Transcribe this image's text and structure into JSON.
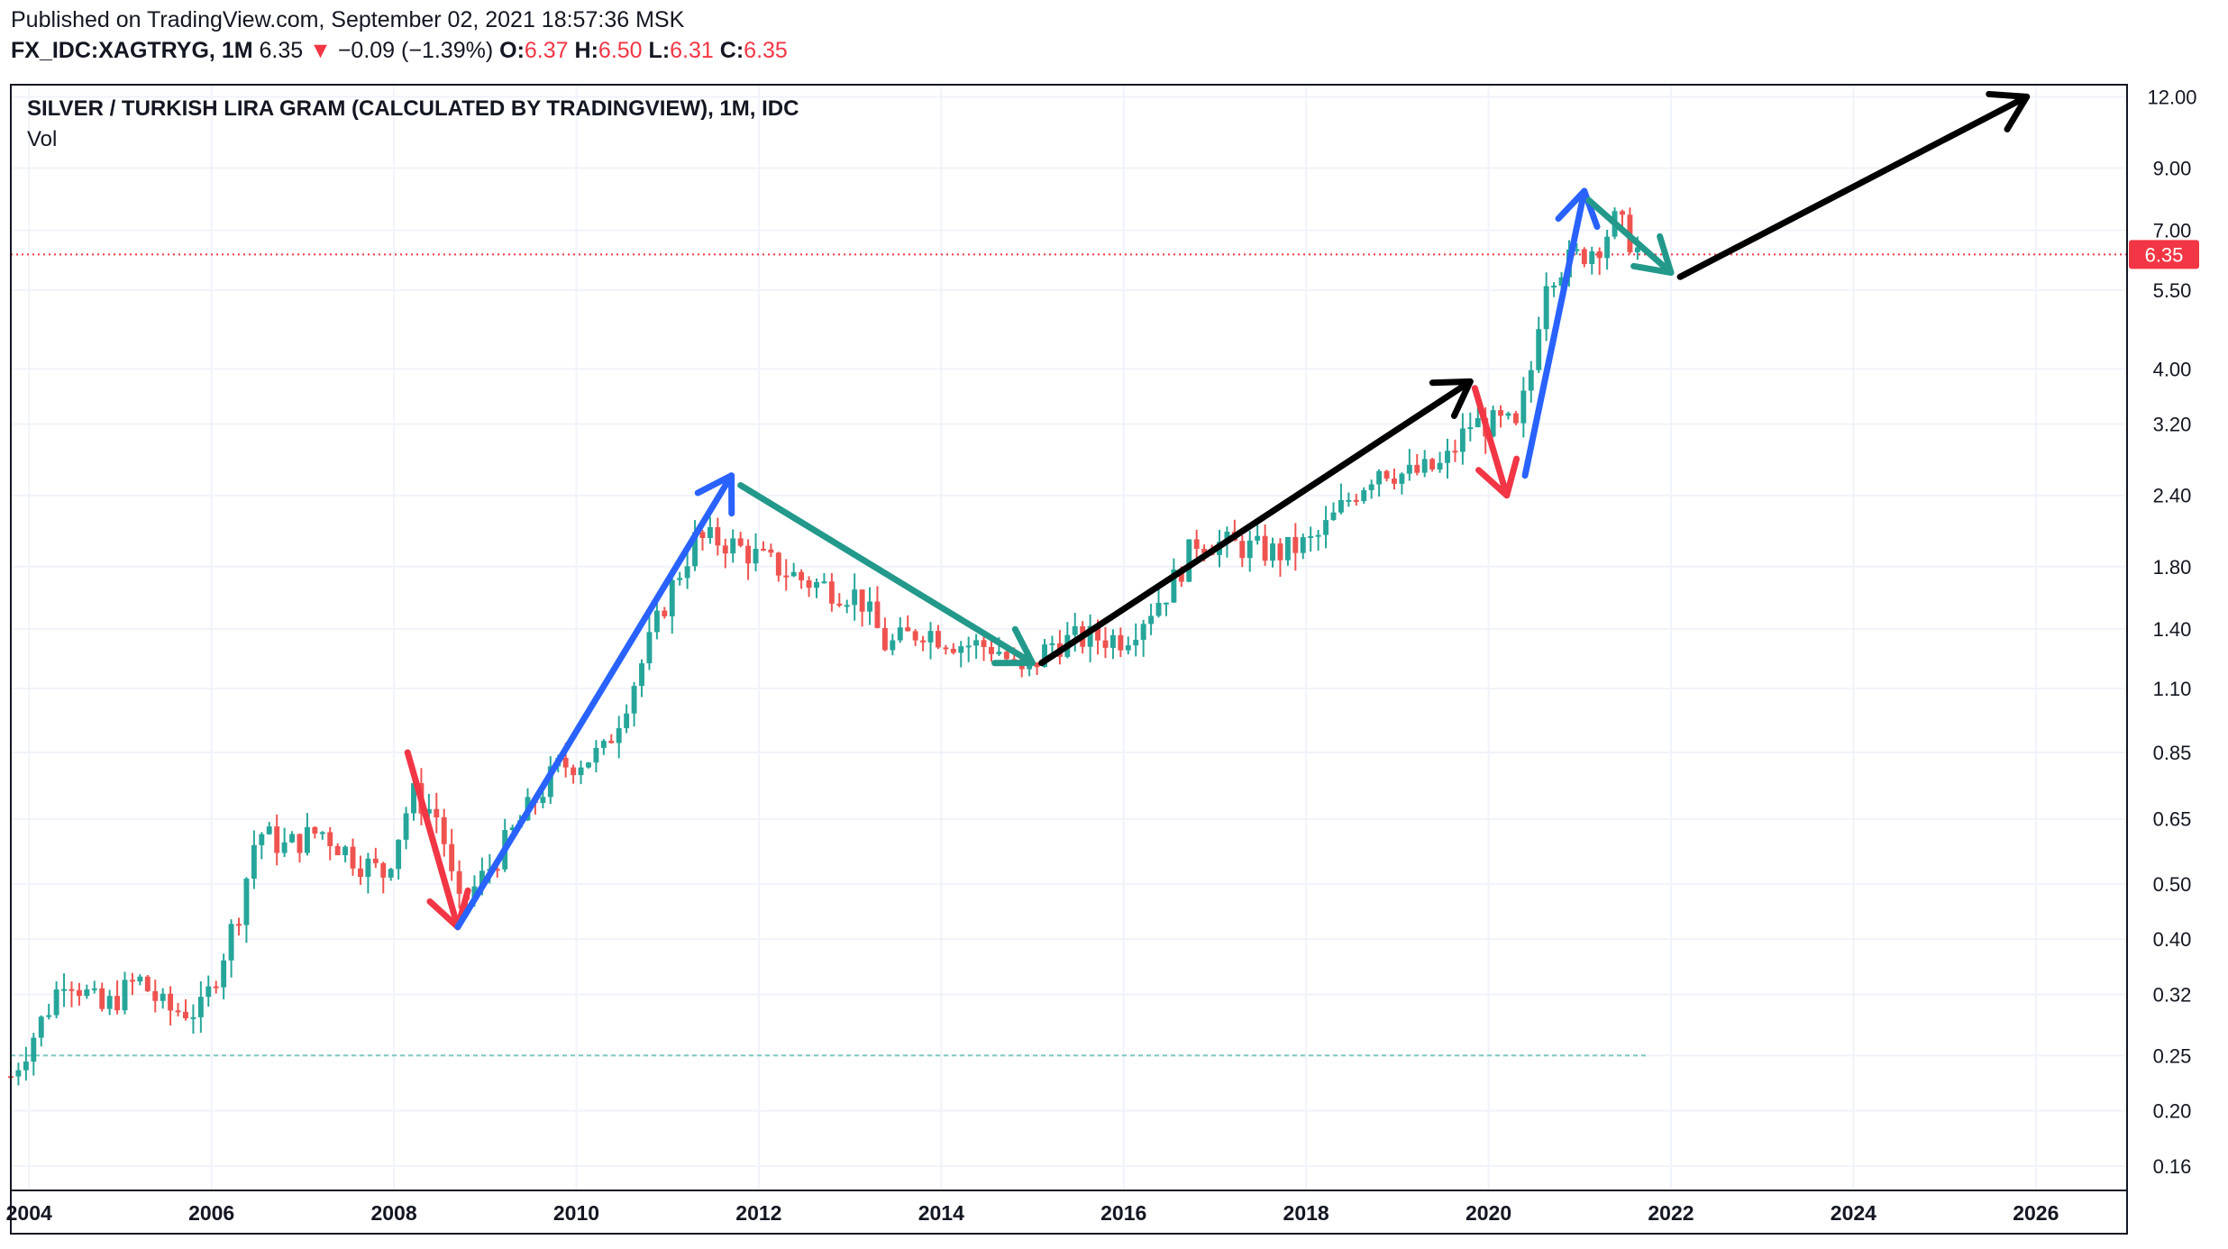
{
  "published": "Published on TradingView.com, September 02, 2021 18:57:36 MSK",
  "quote": {
    "symbol": "FX_IDC:XAGTRYG, 1M",
    "last": "6.35",
    "change": "−0.09 (−1.39%)",
    "o_label": "O:",
    "o": "6.37",
    "h_label": "H:",
    "h": "6.50",
    "l_label": "L:",
    "l": "6.31",
    "c_label": "C:",
    "c": "6.35"
  },
  "colors": {
    "up": "#26a69a",
    "down": "#ef5350",
    "blue": "#2962ff",
    "teal": "#22998a",
    "red": "#f23645",
    "black": "#000000"
  },
  "chart_data": {
    "type": "candlestick",
    "title": "SILVER / TURKISH LIRA GRAM (CALCULATED BY TRADINGVIEW), 1M, IDC",
    "indicator": "Vol",
    "y_scale": "log",
    "y_ticks": [
      "12.00",
      "9.00",
      "7.00",
      "5.50",
      "4.00",
      "3.20",
      "2.40",
      "1.80",
      "1.40",
      "1.10",
      "0.85",
      "0.65",
      "0.50",
      "0.40",
      "0.32",
      "0.25",
      "0.20",
      "0.16"
    ],
    "x_ticks": [
      "2004",
      "2006",
      "2008",
      "2010",
      "2012",
      "2014",
      "2016",
      "2018",
      "2020",
      "2022",
      "2024",
      "2026"
    ],
    "x_range": [
      2003.8,
      2027.0
    ],
    "y_range": [
      0.145,
      12.6
    ],
    "last_price_label": "6.35",
    "last_price": 6.35,
    "support_level": 0.25,
    "monthly_close_anchors": [
      [
        2003.8,
        0.23
      ],
      [
        2004.2,
        0.3
      ],
      [
        2004.4,
        0.35
      ],
      [
        2004.8,
        0.3
      ],
      [
        2005.2,
        0.34
      ],
      [
        2005.5,
        0.3
      ],
      [
        2005.9,
        0.3
      ],
      [
        2006.3,
        0.45
      ],
      [
        2006.5,
        0.62
      ],
      [
        2006.8,
        0.58
      ],
      [
        2007.2,
        0.62
      ],
      [
        2007.6,
        0.55
      ],
      [
        2007.9,
        0.52
      ],
      [
        2008.2,
        0.72
      ],
      [
        2008.5,
        0.65
      ],
      [
        2008.7,
        0.45
      ],
      [
        2009.0,
        0.52
      ],
      [
        2009.4,
        0.65
      ],
      [
        2009.8,
        0.8
      ],
      [
        2010.3,
        0.85
      ],
      [
        2010.7,
        1.2
      ],
      [
        2011.0,
        1.6
      ],
      [
        2011.3,
        2.0
      ],
      [
        2011.6,
        2.0
      ],
      [
        2011.9,
        1.9
      ],
      [
        2012.5,
        1.7
      ],
      [
        2013.1,
        1.6
      ],
      [
        2013.4,
        1.3
      ],
      [
        2013.8,
        1.4
      ],
      [
        2014.2,
        1.32
      ],
      [
        2014.6,
        1.3
      ],
      [
        2014.9,
        1.15
      ],
      [
        2015.2,
        1.32
      ],
      [
        2015.6,
        1.35
      ],
      [
        2016.0,
        1.35
      ],
      [
        2016.5,
        1.65
      ],
      [
        2016.8,
        2.0
      ],
      [
        2017.3,
        1.95
      ],
      [
        2017.7,
        1.9
      ],
      [
        2018.1,
        2.0
      ],
      [
        2018.5,
        2.4
      ],
      [
        2018.8,
        2.7
      ],
      [
        2019.1,
        2.6
      ],
      [
        2019.5,
        2.7
      ],
      [
        2019.8,
        3.2
      ],
      [
        2020.2,
        3.2
      ],
      [
        2020.3,
        3.1
      ],
      [
        2020.5,
        4.2
      ],
      [
        2020.6,
        5.8
      ],
      [
        2020.9,
        6.2
      ],
      [
        2021.2,
        6.6
      ],
      [
        2021.4,
        7.3
      ],
      [
        2021.67,
        6.35
      ]
    ],
    "annotations": [
      {
        "color": "red",
        "points": [
          [
            2008.15,
            0.85
          ],
          [
            2008.7,
            0.42
          ]
        ],
        "arrow": "end"
      },
      {
        "color": "blue",
        "points": [
          [
            2008.7,
            0.42
          ],
          [
            2011.7,
            2.6
          ]
        ],
        "arrow": "end"
      },
      {
        "color": "teal",
        "points": [
          [
            2011.8,
            2.5
          ],
          [
            2015.0,
            1.22
          ]
        ],
        "arrow": "end"
      },
      {
        "color": "black",
        "points": [
          [
            2015.1,
            1.22
          ],
          [
            2019.8,
            3.8
          ]
        ],
        "arrow": "end"
      },
      {
        "color": "red",
        "points": [
          [
            2019.85,
            3.7
          ],
          [
            2020.2,
            2.4
          ]
        ],
        "arrow": "end"
      },
      {
        "color": "blue",
        "points": [
          [
            2020.4,
            2.6
          ],
          [
            2021.05,
            8.2
          ]
        ],
        "arrow": "end"
      },
      {
        "color": "teal",
        "points": [
          [
            2021.1,
            7.9
          ],
          [
            2022.0,
            5.9
          ]
        ],
        "arrow": "end"
      },
      {
        "color": "black",
        "points": [
          [
            2022.1,
            5.8
          ],
          [
            2025.9,
            12.0
          ]
        ],
        "arrow": "end"
      }
    ]
  }
}
